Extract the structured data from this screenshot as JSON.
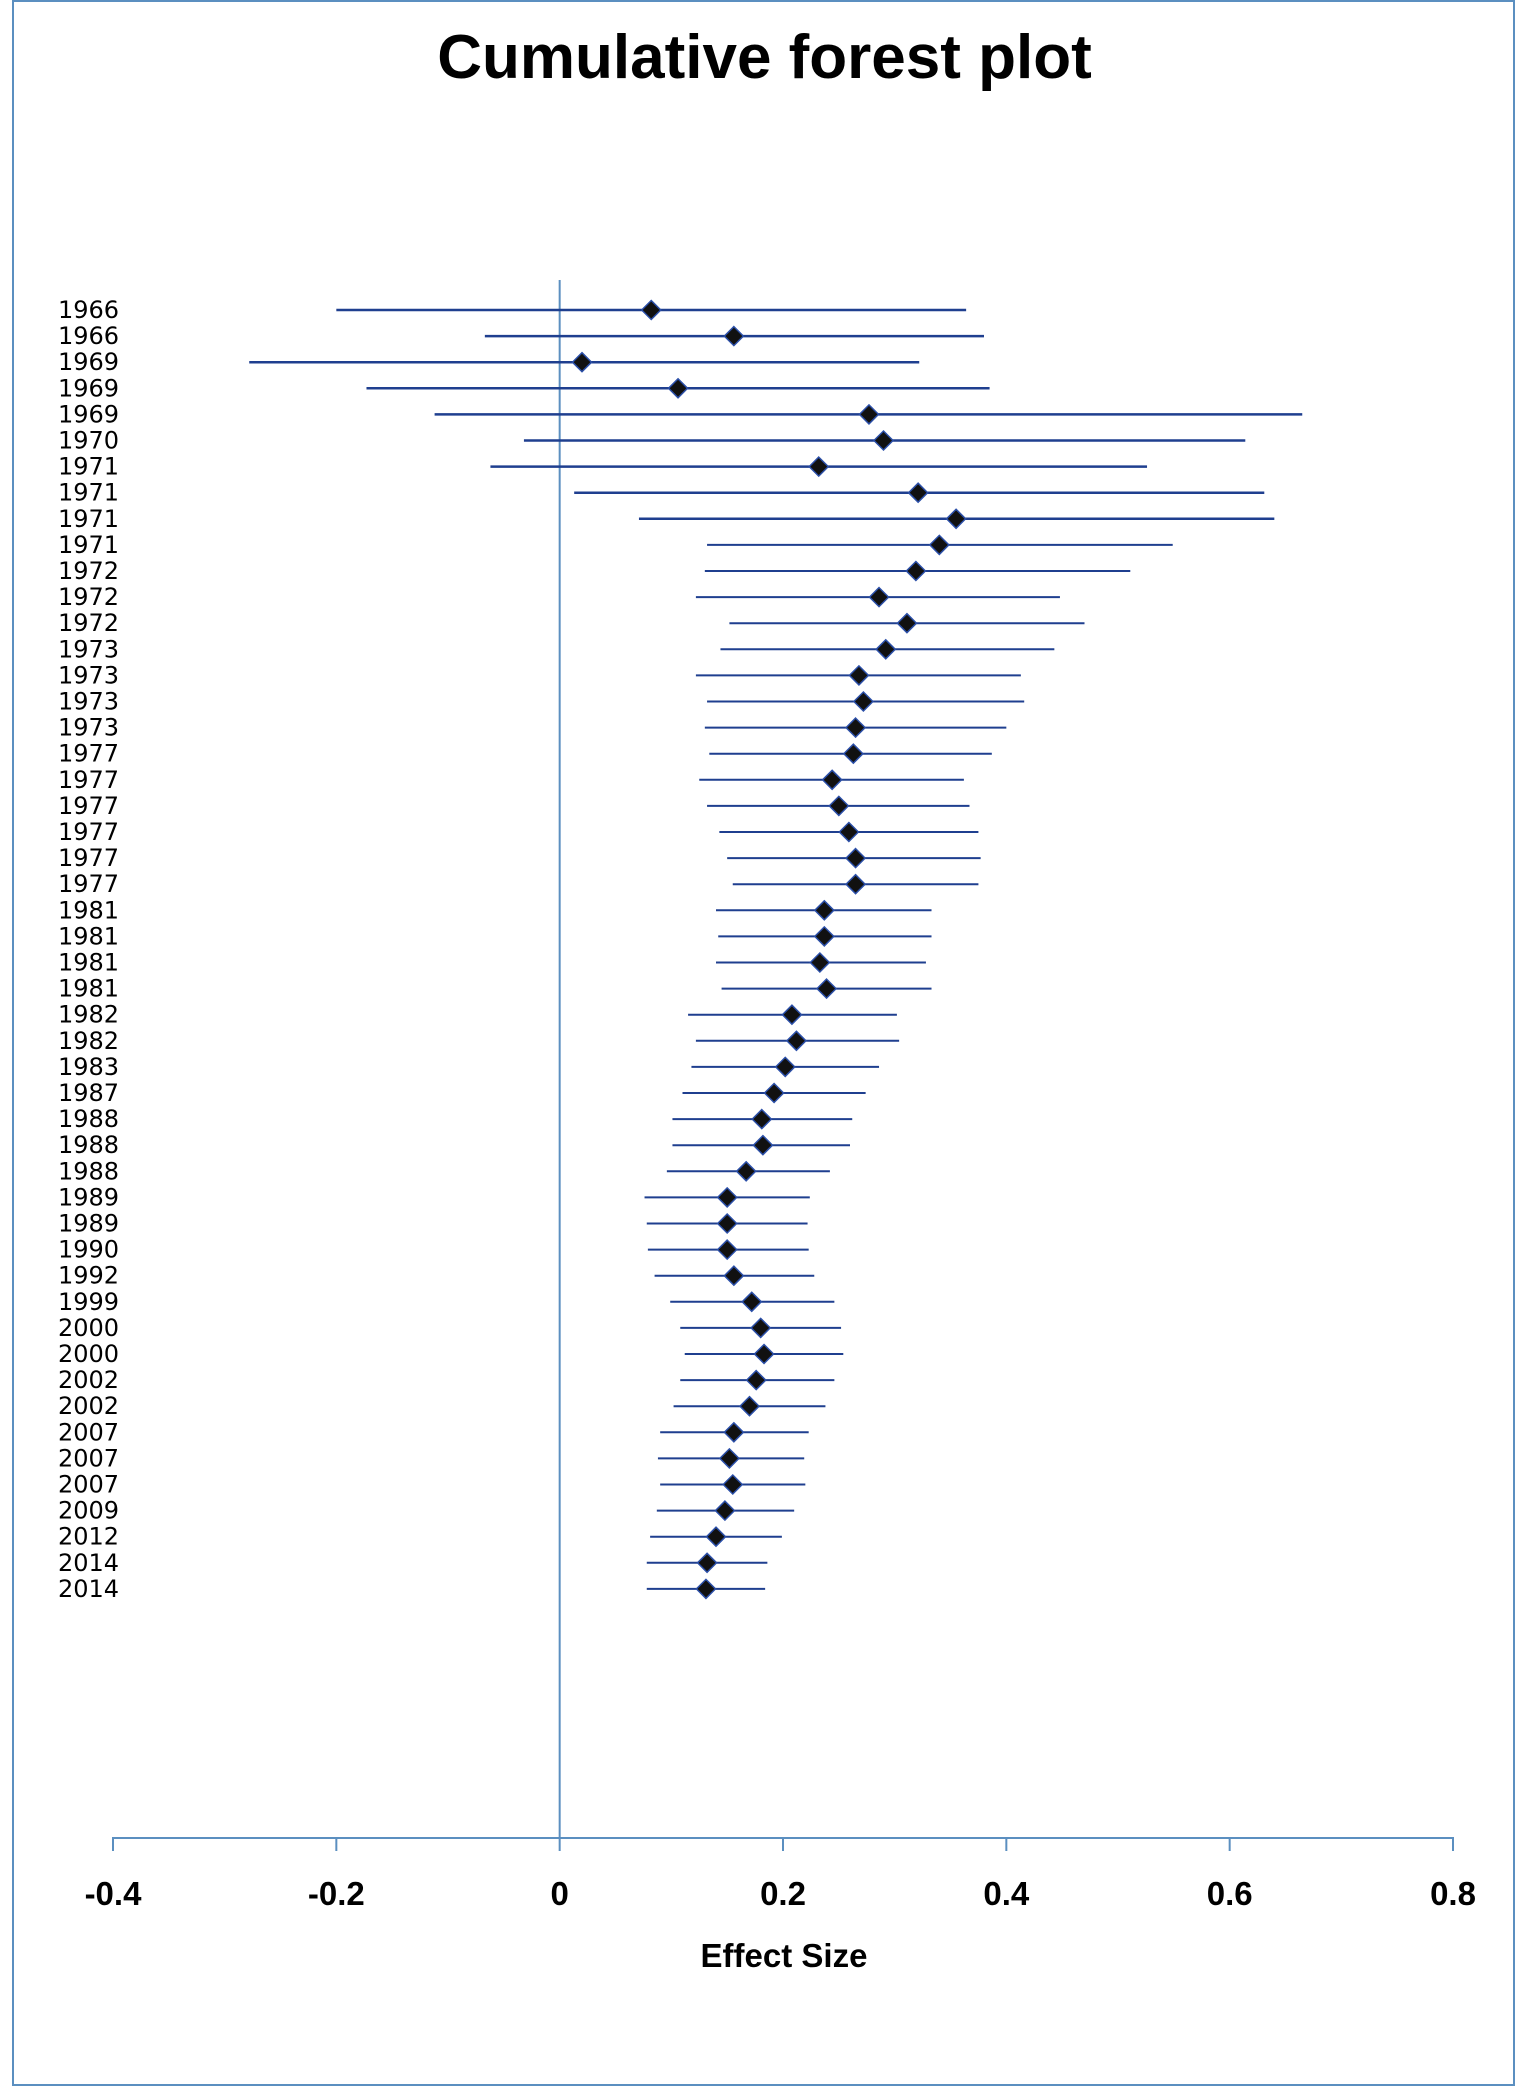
{
  "chart_data": {
    "type": "forest",
    "title": "Cumulative forest plot",
    "xlabel": "Effect Size",
    "xlim": [
      -0.4,
      0.8
    ],
    "xticks": [
      -0.4,
      -0.2,
      0,
      0.2,
      0.4,
      0.6,
      0.8
    ],
    "xtick_labels": [
      "-0.4",
      "-0.2",
      "0",
      "0.2",
      "0.4",
      "0.6",
      "0.8"
    ],
    "reference_line": 0,
    "marker": "diamond",
    "colors": {
      "line": "#1f3f8f",
      "marker": "#111111",
      "axis": "#5b8fc0",
      "frame": "#5b8fc0"
    },
    "studies": [
      {
        "label": "1966",
        "effect": 0.082,
        "lower": -0.2,
        "upper": 0.364
      },
      {
        "label": "1966",
        "effect": 0.156,
        "lower": -0.067,
        "upper": 0.38
      },
      {
        "label": "1969",
        "effect": 0.02,
        "lower": -0.278,
        "upper": 0.322
      },
      {
        "label": "1969",
        "effect": 0.106,
        "lower": -0.173,
        "upper": 0.385
      },
      {
        "label": "1969",
        "effect": 0.277,
        "lower": -0.112,
        "upper": 0.665
      },
      {
        "label": "1970",
        "effect": 0.29,
        "lower": -0.032,
        "upper": 0.614
      },
      {
        "label": "1971",
        "effect": 0.232,
        "lower": -0.062,
        "upper": 0.526
      },
      {
        "label": "1971",
        "effect": 0.321,
        "lower": 0.013,
        "upper": 0.631
      },
      {
        "label": "1971",
        "effect": 0.355,
        "lower": 0.071,
        "upper": 0.64
      },
      {
        "label": "1971",
        "effect": 0.34,
        "lower": 0.132,
        "upper": 0.549
      },
      {
        "label": "1972",
        "effect": 0.319,
        "lower": 0.13,
        "upper": 0.511
      },
      {
        "label": "1972",
        "effect": 0.286,
        "lower": 0.122,
        "upper": 0.448
      },
      {
        "label": "1972",
        "effect": 0.311,
        "lower": 0.152,
        "upper": 0.47
      },
      {
        "label": "1973",
        "effect": 0.292,
        "lower": 0.144,
        "upper": 0.443
      },
      {
        "label": "1973",
        "effect": 0.268,
        "lower": 0.122,
        "upper": 0.413
      },
      {
        "label": "1973",
        "effect": 0.272,
        "lower": 0.132,
        "upper": 0.416
      },
      {
        "label": "1973",
        "effect": 0.265,
        "lower": 0.13,
        "upper": 0.4
      },
      {
        "label": "1977",
        "effect": 0.263,
        "lower": 0.134,
        "upper": 0.387
      },
      {
        "label": "1977",
        "effect": 0.244,
        "lower": 0.125,
        "upper": 0.362
      },
      {
        "label": "1977",
        "effect": 0.25,
        "lower": 0.132,
        "upper": 0.367
      },
      {
        "label": "1977",
        "effect": 0.259,
        "lower": 0.143,
        "upper": 0.375
      },
      {
        "label": "1977",
        "effect": 0.265,
        "lower": 0.15,
        "upper": 0.377
      },
      {
        "label": "1977",
        "effect": 0.265,
        "lower": 0.155,
        "upper": 0.375
      },
      {
        "label": "1981",
        "effect": 0.237,
        "lower": 0.14,
        "upper": 0.333
      },
      {
        "label": "1981",
        "effect": 0.237,
        "lower": 0.142,
        "upper": 0.333
      },
      {
        "label": "1981",
        "effect": 0.233,
        "lower": 0.14,
        "upper": 0.328
      },
      {
        "label": "1981",
        "effect": 0.239,
        "lower": 0.145,
        "upper": 0.333
      },
      {
        "label": "1982",
        "effect": 0.208,
        "lower": 0.115,
        "upper": 0.302
      },
      {
        "label": "1982",
        "effect": 0.212,
        "lower": 0.122,
        "upper": 0.304
      },
      {
        "label": "1983",
        "effect": 0.202,
        "lower": 0.118,
        "upper": 0.286
      },
      {
        "label": "1987",
        "effect": 0.192,
        "lower": 0.11,
        "upper": 0.274
      },
      {
        "label": "1988",
        "effect": 0.181,
        "lower": 0.101,
        "upper": 0.262
      },
      {
        "label": "1988",
        "effect": 0.182,
        "lower": 0.101,
        "upper": 0.26
      },
      {
        "label": "1988",
        "effect": 0.167,
        "lower": 0.096,
        "upper": 0.242
      },
      {
        "label": "1989",
        "effect": 0.15,
        "lower": 0.076,
        "upper": 0.224
      },
      {
        "label": "1989",
        "effect": 0.15,
        "lower": 0.078,
        "upper": 0.222
      },
      {
        "label": "1990",
        "effect": 0.15,
        "lower": 0.079,
        "upper": 0.223
      },
      {
        "label": "1992",
        "effect": 0.156,
        "lower": 0.085,
        "upper": 0.228
      },
      {
        "label": "1999",
        "effect": 0.172,
        "lower": 0.099,
        "upper": 0.246
      },
      {
        "label": "2000",
        "effect": 0.18,
        "lower": 0.108,
        "upper": 0.252
      },
      {
        "label": "2000",
        "effect": 0.183,
        "lower": 0.112,
        "upper": 0.254
      },
      {
        "label": "2002",
        "effect": 0.176,
        "lower": 0.108,
        "upper": 0.246
      },
      {
        "label": "2002",
        "effect": 0.17,
        "lower": 0.102,
        "upper": 0.238
      },
      {
        "label": "2007",
        "effect": 0.156,
        "lower": 0.09,
        "upper": 0.223
      },
      {
        "label": "2007",
        "effect": 0.152,
        "lower": 0.088,
        "upper": 0.219
      },
      {
        "label": "2007",
        "effect": 0.155,
        "lower": 0.09,
        "upper": 0.22
      },
      {
        "label": "2009",
        "effect": 0.148,
        "lower": 0.087,
        "upper": 0.21
      },
      {
        "label": "2012",
        "effect": 0.14,
        "lower": 0.081,
        "upper": 0.199
      },
      {
        "label": "2014",
        "effect": 0.132,
        "lower": 0.078,
        "upper": 0.186
      },
      {
        "label": "2014",
        "effect": 0.131,
        "lower": 0.078,
        "upper": 0.184
      }
    ]
  }
}
